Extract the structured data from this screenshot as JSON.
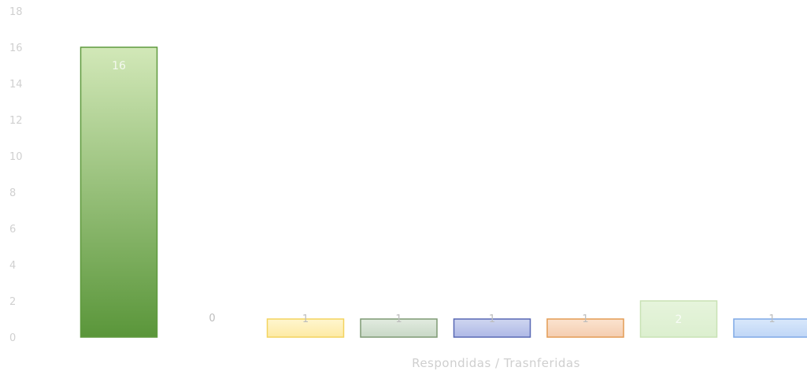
{
  "chart_data": {
    "type": "bar",
    "categories": [
      "",
      "",
      "",
      "",
      "",
      "",
      "",
      ""
    ],
    "values": [
      16,
      0,
      1,
      1,
      1,
      1,
      2,
      1
    ],
    "data_labels": [
      "16",
      "0",
      "1",
      "1",
      "1",
      "1",
      "2",
      "1"
    ],
    "xlabel": "Respondidas / Trasnferidas",
    "ylabel": "",
    "ylim": [
      0,
      18
    ],
    "yticks": [
      0,
      2,
      4,
      6,
      8,
      10,
      12,
      14,
      16,
      18
    ],
    "grid": false,
    "legend": "none",
    "colors": [
      {
        "top": "#d2e8b8",
        "bottom": "#5a963a",
        "stroke": "#5f9a3e"
      },
      {
        "top": "#ffffff",
        "bottom": "#ffffff",
        "stroke": "#ffffff"
      },
      {
        "top": "#fff6cf",
        "bottom": "#fdeaa4",
        "stroke": "#f3d35e"
      },
      {
        "top": "#e2ebe0",
        "bottom": "#c8d8c6",
        "stroke": "#7e9a74"
      },
      {
        "top": "#cfd6f0",
        "bottom": "#aeb8e6",
        "stroke": "#5868b4"
      },
      {
        "top": "#fbe3cf",
        "bottom": "#f4cdb0",
        "stroke": "#e39c54"
      },
      {
        "top": "#e6f4dc",
        "bottom": "#dcefcf",
        "stroke": "#c8e2b4"
      },
      {
        "top": "#d9e8fb",
        "bottom": "#bfd6f6",
        "stroke": "#7fa9e6"
      }
    ]
  }
}
